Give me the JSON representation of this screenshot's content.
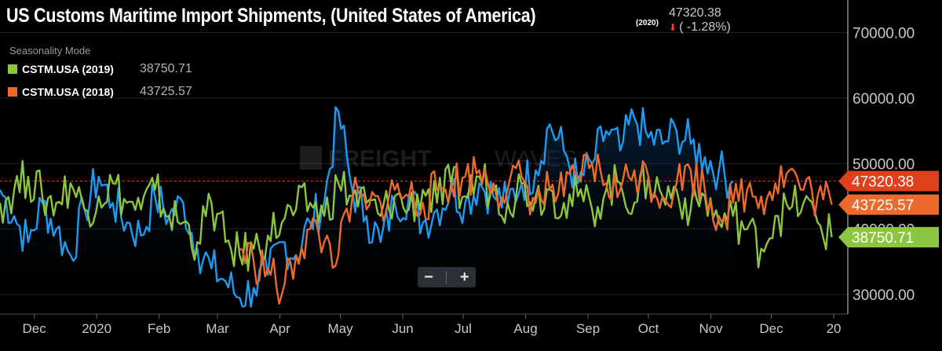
{
  "header": {
    "title": "US Customs Maritime Import Shipments, (United States of America)",
    "year_tag": "(2020)",
    "last_value": "47320.38",
    "change": "( -1.28%)",
    "seasonality_label": "Seasonality Mode"
  },
  "legend": [
    {
      "label": "CSTM.USA (2019)",
      "value": "38750.71",
      "color": "#8cc63f"
    },
    {
      "label": "CSTM.USA (2018)",
      "value": "43725.57",
      "color": "#ec6a2c"
    }
  ],
  "price_tags": [
    {
      "text": "47320.38",
      "value": 47320.38,
      "color": "#e0401c"
    },
    {
      "text": "43725.57",
      "value": 43725.57,
      "color": "#ec6a2c"
    },
    {
      "text": "38750.71",
      "value": 38750.71,
      "color": "#8cc63f"
    }
  ],
  "zoom": {
    "minus": "−",
    "plus": "+"
  },
  "colors": {
    "s2020": "#1e9bf0",
    "s2019": "#8cc63f",
    "s2018": "#ec6a2c",
    "grid": "#1e2530",
    "axis_text": "#c8c8c8"
  },
  "chart_data": {
    "type": "line",
    "title": "US Customs Maritime Import Shipments, (United States of America)",
    "x_ticks": [
      "Dec",
      "2020",
      "Feb",
      "Mar",
      "Apr",
      "May",
      "Jun",
      "Jul",
      "Aug",
      "Sep",
      "Oct",
      "Nov",
      "Dec",
      "20"
    ],
    "y_ticks": [
      "30000.00",
      "40000.00",
      "50000.00",
      "60000.00",
      "70000.00"
    ],
    "ylim": [
      27000,
      75000
    ],
    "x_domain": [
      "2019-11-14",
      "2021-01-08"
    ],
    "grid": true,
    "legend_position": "top-left",
    "reference_line": 47320.38,
    "series": [
      {
        "name": "(2020)",
        "x": [
          "2019-11-14",
          "2019-11-21",
          "2019-11-28",
          "2019-12-05",
          "2019-12-12",
          "2019-12-19",
          "2019-12-26",
          "2020-01-02",
          "2020-01-09",
          "2020-01-16",
          "2020-01-23",
          "2020-01-30",
          "2020-02-06",
          "2020-02-13",
          "2020-02-20",
          "2020-02-27",
          "2020-03-05",
          "2020-03-12",
          "2020-03-19",
          "2020-03-26",
          "2020-04-02",
          "2020-04-09",
          "2020-04-16",
          "2020-04-23",
          "2020-04-30",
          "2020-05-07",
          "2020-05-14",
          "2020-05-21",
          "2020-05-28",
          "2020-06-04",
          "2020-06-11",
          "2020-06-18",
          "2020-06-25",
          "2020-07-02",
          "2020-07-09",
          "2020-07-16",
          "2020-07-23",
          "2020-07-30",
          "2020-08-06",
          "2020-08-13",
          "2020-08-20",
          "2020-08-27",
          "2020-09-03",
          "2020-09-10",
          "2020-09-17",
          "2020-09-24",
          "2020-10-01",
          "2020-10-08",
          "2020-10-15",
          "2020-10-22",
          "2020-10-29",
          "2020-11-05",
          "2020-11-12"
        ],
        "values": [
          46000,
          42000,
          38000,
          44000,
          40000,
          36000,
          43000,
          48000,
          44000,
          41000,
          39000,
          45000,
          42000,
          44000,
          37000,
          34000,
          32000,
          29500,
          31000,
          33000,
          38000,
          36000,
          41000,
          44000,
          58000,
          46000,
          42000,
          38000,
          44000,
          45000,
          41000,
          43000,
          46000,
          44000,
          47000,
          45000,
          44000,
          47000,
          49000,
          56000,
          52000,
          47000,
          50000,
          55000,
          52000,
          57000,
          54000,
          53000,
          55000,
          53000,
          51000,
          49000,
          47320.38
        ]
      },
      {
        "name": "CSTM.USA (2019)",
        "x": [
          "2019-11-14",
          "2019-11-21",
          "2019-11-28",
          "2019-12-05",
          "2019-12-12",
          "2019-12-19",
          "2019-12-26",
          "2020-01-02",
          "2020-01-09",
          "2020-01-16",
          "2020-01-23",
          "2020-01-30",
          "2020-02-06",
          "2020-02-13",
          "2020-02-20",
          "2020-02-27",
          "2020-03-05",
          "2020-03-12",
          "2020-03-19",
          "2020-03-26",
          "2020-04-02",
          "2020-04-09",
          "2020-04-16",
          "2020-04-23",
          "2020-04-30",
          "2020-05-07",
          "2020-05-14",
          "2020-05-21",
          "2020-05-28",
          "2020-06-04",
          "2020-06-11",
          "2020-06-18",
          "2020-06-25",
          "2020-07-02",
          "2020-07-09",
          "2020-07-16",
          "2020-07-23",
          "2020-07-30",
          "2020-08-06",
          "2020-08-13",
          "2020-08-20",
          "2020-08-27",
          "2020-09-03",
          "2020-09-10",
          "2020-09-17",
          "2020-09-24",
          "2020-10-01",
          "2020-10-08",
          "2020-10-15",
          "2020-10-22",
          "2020-10-29",
          "2020-11-05",
          "2020-11-12",
          "2020-11-19",
          "2020-11-26",
          "2020-12-03",
          "2020-12-10",
          "2020-12-17",
          "2020-12-24",
          "2020-12-31"
        ],
        "values": [
          44000,
          46000,
          48000,
          45000,
          44000,
          47000,
          43000,
          45000,
          47000,
          44000,
          43000,
          46000,
          42000,
          41000,
          38000,
          44000,
          38000,
          36000,
          37000,
          39000,
          41000,
          43000,
          44000,
          42000,
          47000,
          45000,
          44000,
          42000,
          45000,
          43000,
          46000,
          44000,
          47000,
          45000,
          48000,
          46000,
          44000,
          47000,
          45000,
          46000,
          44000,
          45000,
          43000,
          46000,
          47000,
          44000,
          48000,
          45000,
          46000,
          43000,
          45000,
          41000,
          42000,
          40000,
          37000,
          42000,
          43000,
          44000,
          41000,
          38750.71
        ]
      },
      {
        "name": "CSTM.USA (2018)",
        "x": [
          "2020-03-12",
          "2020-03-19",
          "2020-03-26",
          "2020-04-02",
          "2020-04-09",
          "2020-04-16",
          "2020-04-23",
          "2020-04-30",
          "2020-05-07",
          "2020-05-14",
          "2020-05-21",
          "2020-05-28",
          "2020-06-04",
          "2020-06-11",
          "2020-06-18",
          "2020-06-25",
          "2020-07-02",
          "2020-07-09",
          "2020-07-16",
          "2020-07-23",
          "2020-07-30",
          "2020-08-06",
          "2020-08-13",
          "2020-08-20",
          "2020-08-27",
          "2020-09-03",
          "2020-09-10",
          "2020-09-17",
          "2020-09-24",
          "2020-10-01",
          "2020-10-08",
          "2020-10-15",
          "2020-10-22",
          "2020-10-29",
          "2020-11-05",
          "2020-11-12",
          "2020-11-19",
          "2020-11-26",
          "2020-12-03",
          "2020-12-10",
          "2020-12-17",
          "2020-12-24",
          "2020-12-31"
        ],
        "values": [
          37000,
          35000,
          34000,
          30000,
          36000,
          40000,
          38000,
          36000,
          45000,
          43000,
          44000,
          46000,
          45000,
          44000,
          46000,
          47000,
          48000,
          49000,
          47000,
          46000,
          48000,
          44000,
          46000,
          45000,
          48000,
          50000,
          47000,
          46000,
          49000,
          48000,
          45000,
          47000,
          49000,
          46000,
          42000,
          44000,
          46000,
          45000,
          47000,
          49000,
          46000,
          45000,
          43725.57
        ]
      }
    ]
  }
}
